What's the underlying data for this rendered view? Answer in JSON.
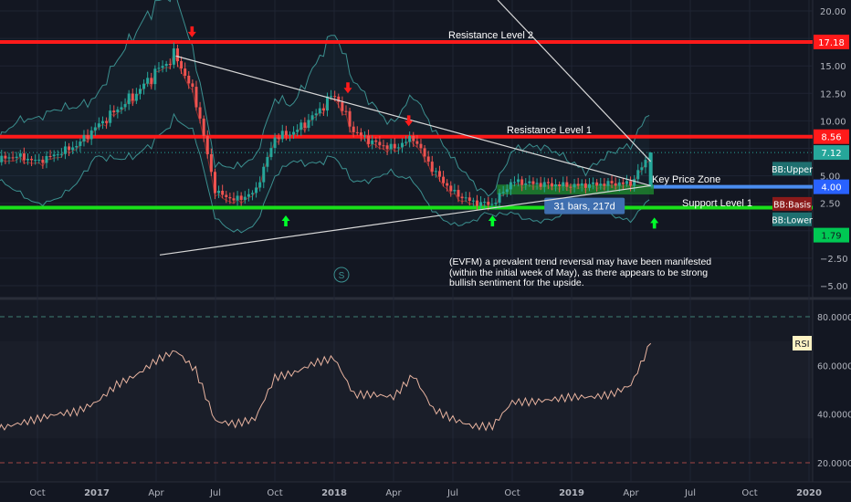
{
  "colors": {
    "background": "#131722",
    "grid": "#1f2433",
    "resistance": "#ff1a1a",
    "support": "#19e019",
    "key_zone": "#4a8df0",
    "candle_up": "#26a69a",
    "candle_down": "#ef5350",
    "bollinger": "#3b8f8f",
    "basis": "#8b2a2a",
    "rsi_line": "#e9b4a0",
    "arrow_up": "#00ff2a",
    "arrow_down": "#ff1a1a"
  },
  "annotations": {
    "resistance2": "Resistance Level 2",
    "resistance1": "Resistance Level 1",
    "support1": "Support Level 1",
    "key_zone": "Key Price Zone",
    "bars_box": "31 bars, 217d",
    "s_marker": "S",
    "note": "(EVFM) a prevalent trend reversal may have been manifested (within the initial week of May), as there appears to be strong bullish sentiment for the upside."
  },
  "badges": {
    "resistance2": "17.18",
    "resistance1": "8.56",
    "last_price": "7.12",
    "key_zone": "4.00",
    "bb_lower_value": "1.79",
    "bb_upper": "BB:Upper",
    "bb_basis": "BB:Basis",
    "bb_lower": "BB:Lower",
    "rsi": "RSI"
  },
  "chart_data": [
    {
      "type": "line",
      "panel": "price",
      "price_axis_ticks": [
        "20.00",
        "17.50",
        "15.00",
        "12.50",
        "10.00",
        "7.50",
        "5.00",
        "2.50",
        "0.00",
        "−2.50",
        "−5.00"
      ],
      "time_axis_ticks": [
        "Oct",
        "2017",
        "Apr",
        "Jul",
        "Oct",
        "2018",
        "Apr",
        "Jul",
        "Oct",
        "2019",
        "Apr",
        "Jul",
        "Oct",
        "2020"
      ],
      "levels": [
        {
          "name": "Resistance Level 2",
          "value": 17.18
        },
        {
          "name": "Resistance Level 1",
          "value": 8.56
        },
        {
          "name": "Key Price Zone",
          "value": 4.0
        },
        {
          "name": "Support Level 1",
          "value": 2.1
        }
      ],
      "last_price": 7.12,
      "bb_lower": 1.79,
      "close_series": {
        "x": [
          "2016-08",
          "2016-09",
          "2016-10",
          "2016-11",
          "2016-12",
          "2017-01",
          "2017-02",
          "2017-03",
          "2017-04",
          "2017-05",
          "2017-06",
          "2017-07",
          "2017-08",
          "2017-09",
          "2017-10",
          "2017-11",
          "2017-12",
          "2018-01",
          "2018-02",
          "2018-03",
          "2018-04",
          "2018-05",
          "2018-06",
          "2018-07",
          "2018-08",
          "2018-09",
          "2018-10",
          "2018-11",
          "2018-12",
          "2019-01",
          "2019-02",
          "2019-03",
          "2019-04",
          "2019-05"
        ],
        "values": [
          6.5,
          6.8,
          6.3,
          7.0,
          7.8,
          9.5,
          11.0,
          12.5,
          14.5,
          16.0,
          12.0,
          3.5,
          2.8,
          3.5,
          8.5,
          9.0,
          10.5,
          12.5,
          9.0,
          8.0,
          7.5,
          8.5,
          5.5,
          3.5,
          2.6,
          2.4,
          4.5,
          4.3,
          4.2,
          4.1,
          4.2,
          4.3,
          4.3,
          7.12
        ]
      }
    },
    {
      "type": "line",
      "panel": "RSI",
      "title": "RSI",
      "axis_ticks": [
        "80.0000",
        "60.0000",
        "40.0000",
        "20.0000"
      ],
      "ylim": [
        20,
        80
      ],
      "x": [
        "2016-08",
        "2016-09",
        "2016-10",
        "2016-11",
        "2016-12",
        "2017-01",
        "2017-02",
        "2017-03",
        "2017-04",
        "2017-05",
        "2017-06",
        "2017-07",
        "2017-08",
        "2017-09",
        "2017-10",
        "2017-11",
        "2017-12",
        "2018-01",
        "2018-02",
        "2018-03",
        "2018-04",
        "2018-05",
        "2018-06",
        "2018-07",
        "2018-08",
        "2018-09",
        "2018-10",
        "2018-11",
        "2018-12",
        "2019-01",
        "2019-02",
        "2019-03",
        "2019-04",
        "2019-05"
      ],
      "values": [
        34,
        36,
        38,
        40,
        41,
        45,
        52,
        56,
        62,
        66,
        58,
        37,
        36,
        38,
        55,
        57,
        61,
        63,
        48,
        48,
        47,
        56,
        42,
        38,
        35,
        35,
        45,
        45,
        46,
        47,
        47,
        48,
        52,
        69
      ]
    }
  ]
}
